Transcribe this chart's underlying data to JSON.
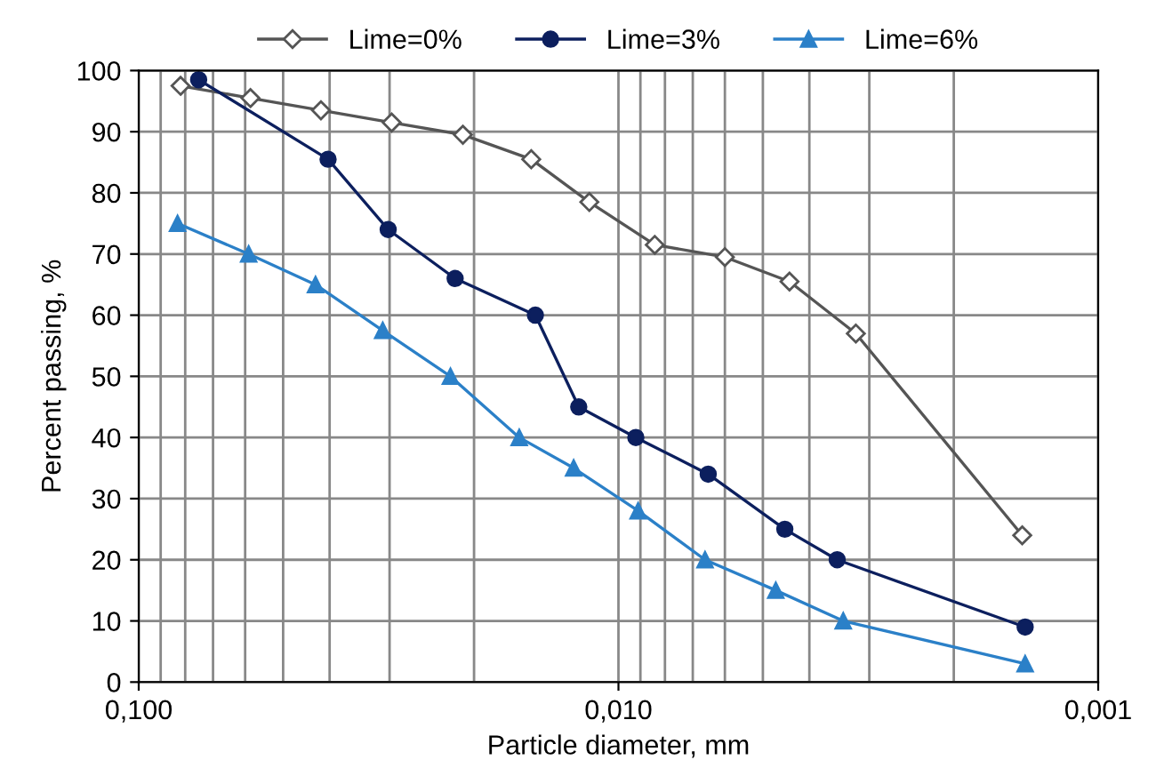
{
  "chart_data": {
    "type": "line",
    "xlabel": "Particle diameter, mm",
    "ylabel": "Percent passing, %",
    "log": "x",
    "xlim": [
      0.1,
      0.001
    ],
    "xticks": [
      {
        "value": 0.1,
        "label": "0,100"
      },
      {
        "value": 0.01,
        "label": "0,010"
      },
      {
        "value": 0.001,
        "label": "0,001"
      }
    ],
    "ylim": [
      0,
      100
    ],
    "yticks": [
      0,
      10,
      20,
      30,
      40,
      50,
      60,
      70,
      80,
      90,
      100
    ],
    "grid": true,
    "legend": "top",
    "series": [
      {
        "name": "Lime=0%",
        "color": "#555555",
        "marker": "diamond",
        "x": [
          0.0818,
          0.0585,
          0.0417,
          0.0297,
          0.0211,
          0.0152,
          0.0115,
          0.0084,
          0.006,
          0.0044,
          0.0032,
          0.00144
        ],
        "values": [
          97.5,
          95.5,
          93.5,
          91.5,
          89.5,
          85.5,
          78.5,
          71.5,
          69.5,
          65.5,
          57,
          24
        ]
      },
      {
        "name": "Lime=3%",
        "color": "#0c1f5e",
        "marker": "circle",
        "x": [
          0.075,
          0.0403,
          0.0302,
          0.0219,
          0.0149,
          0.0121,
          0.0092,
          0.0065,
          0.0045,
          0.0035,
          0.00142
        ],
        "values": [
          98.5,
          85.5,
          74,
          66,
          60,
          45,
          40,
          34,
          25,
          20,
          9
        ]
      },
      {
        "name": "Lime=6%",
        "color": "#2b80c8",
        "marker": "triangle",
        "x": [
          0.083,
          0.059,
          0.0428,
          0.031,
          0.0224,
          0.0161,
          0.0124,
          0.0091,
          0.0066,
          0.0047,
          0.0034,
          0.00142
        ],
        "values": [
          75,
          70,
          65,
          57.5,
          50,
          40,
          35,
          28,
          20,
          15,
          10,
          3
        ]
      }
    ]
  }
}
